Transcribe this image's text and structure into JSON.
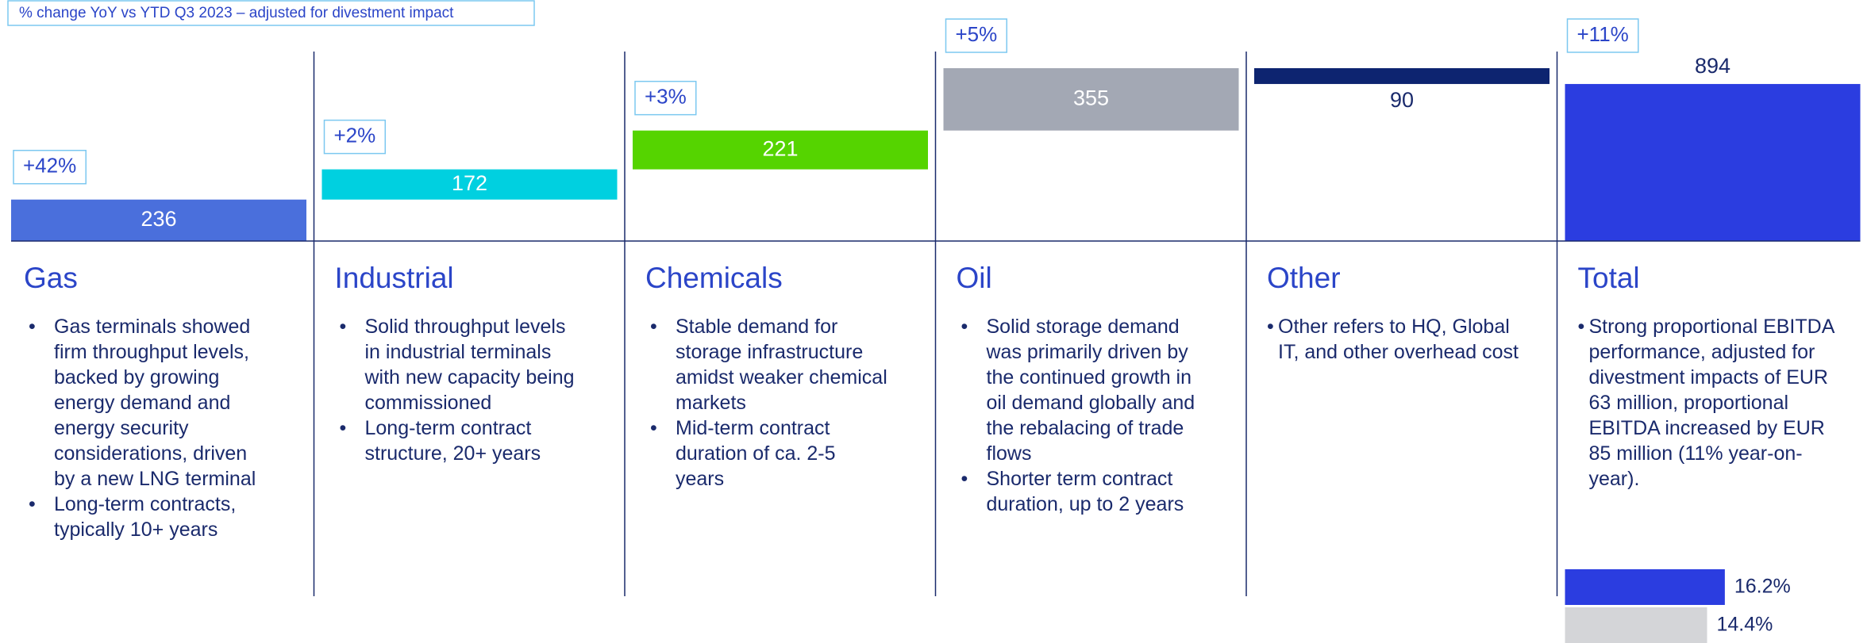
{
  "note_box": "%  change YoY vs YTD Q3 2023 – adjusted for divestment impact",
  "chart_data": {
    "type": "waterfall",
    "categories": [
      "Gas",
      "Industrial",
      "Chemicals",
      "Oil",
      "Other",
      "Total"
    ],
    "values": [
      236,
      172,
      221,
      355,
      -90,
      894
    ],
    "value_labels": [
      "236",
      "172",
      "221",
      "355",
      "90",
      "894"
    ],
    "colors": [
      "#4a6fdc",
      "#00d0e0",
      "#55d400",
      "#a3a8b4",
      "#0d2470",
      "#2b3de0"
    ],
    "changes": [
      "+42%",
      "+2%",
      "+3%",
      "+5%",
      null,
      "+11%"
    ]
  },
  "sections": [
    {
      "bullets": [
        "Gas terminals showed firm throughput levels, backed by growing energy demand and energy security considerations, driven by a new LNG terminal",
        "Long-term contracts, typically 10+ years"
      ]
    },
    {
      "bullets": [
        "Solid throughput levels in industrial terminals with new capacity being commissioned",
        "Long-term contract structure, 20+ years"
      ]
    },
    {
      "bullets": [
        "Stable demand for storage infrastructure amidst weaker chemical markets",
        "Mid-term contract duration of ca. 2-5 years"
      ]
    },
    {
      "bullets": [
        "Solid storage demand was primarily driven by the continued growth in oil demand globally and the rebalacing of trade flows",
        "Shorter term contract duration, up to 2 years"
      ]
    },
    {
      "bullets": [
        "Other refers to HQ, Global IT, and other overhead cost"
      ]
    },
    {
      "bullets": [
        "Strong proportional EBITDA performance, adjusted for divestment impacts of EUR 63 million, proportional EBITDA increased by EUR 85 million (11% year-on-year)."
      ]
    }
  ],
  "margin_chart": {
    "type": "bar",
    "orientation": "horizontal",
    "values": [
      16.2,
      14.4
    ],
    "value_labels": [
      "16.2%",
      "14.4%"
    ],
    "colors": [
      "#2b3de0",
      "#d4d5d8"
    ]
  }
}
